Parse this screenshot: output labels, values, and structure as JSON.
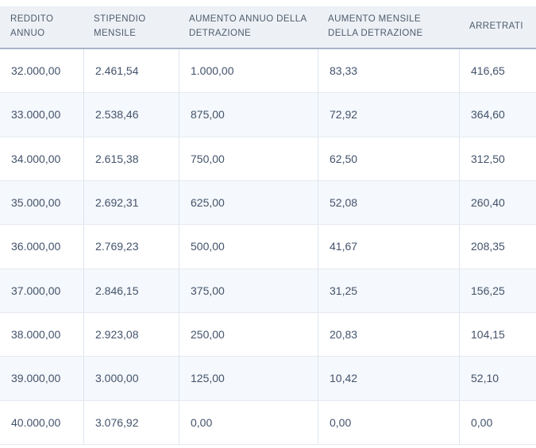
{
  "colors": {
    "header_bg": "#edf1f6",
    "header_border": "#a7b4c6",
    "header_text": "#4e5b6b",
    "row_alt_bg": "#f5f8fc",
    "row_border": "#e5eaf1",
    "col_border": "#dde4ee",
    "cell_text": "#43536b"
  },
  "table": {
    "columns": [
      {
        "label": "REDDITO ANNUO"
      },
      {
        "label": "STIPENDIO MENSILE"
      },
      {
        "label": "AUMENTO ANNUO DELLA DETRAZIONE"
      },
      {
        "label": "AUMENTO MENSILE DELLA DETRAZIONE"
      },
      {
        "label": "ARRETRATI"
      }
    ],
    "rows": [
      [
        "32.000,00",
        "2.461,54",
        "1.000,00",
        "83,33",
        "416,65"
      ],
      [
        "33.000,00",
        "2.538,46",
        "875,00",
        "72,92",
        "364,60"
      ],
      [
        "34.000,00",
        "2.615,38",
        "750,00",
        "62,50",
        "312,50"
      ],
      [
        "35.000,00",
        "2.692,31",
        "625,00",
        "52,08",
        "260,40"
      ],
      [
        "36.000,00",
        "2.769,23",
        "500,00",
        "41,67",
        "208,35"
      ],
      [
        "37.000,00",
        "2.846,15",
        "375,00",
        "31,25",
        "156,25"
      ],
      [
        "38.000,00",
        "2.923,08",
        "250,00",
        "20,83",
        "104,15"
      ],
      [
        "39.000,00",
        "3.000,00",
        "125,00",
        "10,42",
        "52,10"
      ],
      [
        "40.000,00",
        "3.076,92",
        "0,00",
        "0,00",
        "0,00"
      ]
    ]
  },
  "chart_data": {
    "type": "table",
    "title": "",
    "columns": [
      "REDDITO ANNUO",
      "STIPENDIO MENSILE",
      "AUMENTO ANNUO DELLA DETRAZIONE",
      "AUMENTO MENSILE DELLA DETRAZIONE",
      "ARRETRATI"
    ],
    "rows": [
      [
        32000.0,
        2461.54,
        1000.0,
        83.33,
        416.65
      ],
      [
        33000.0,
        2538.46,
        875.0,
        72.92,
        364.6
      ],
      [
        34000.0,
        2615.38,
        750.0,
        62.5,
        312.5
      ],
      [
        35000.0,
        2692.31,
        625.0,
        52.08,
        260.4
      ],
      [
        36000.0,
        2769.23,
        500.0,
        41.67,
        208.35
      ],
      [
        37000.0,
        2846.15,
        375.0,
        31.25,
        156.25
      ],
      [
        38000.0,
        2923.08,
        250.0,
        20.83,
        104.15
      ],
      [
        39000.0,
        3000.0,
        125.0,
        10.42,
        52.1
      ],
      [
        40000.0,
        3076.92,
        0.0,
        0.0,
        0.0
      ]
    ],
    "number_format": "it-IT (1.234,56)"
  }
}
